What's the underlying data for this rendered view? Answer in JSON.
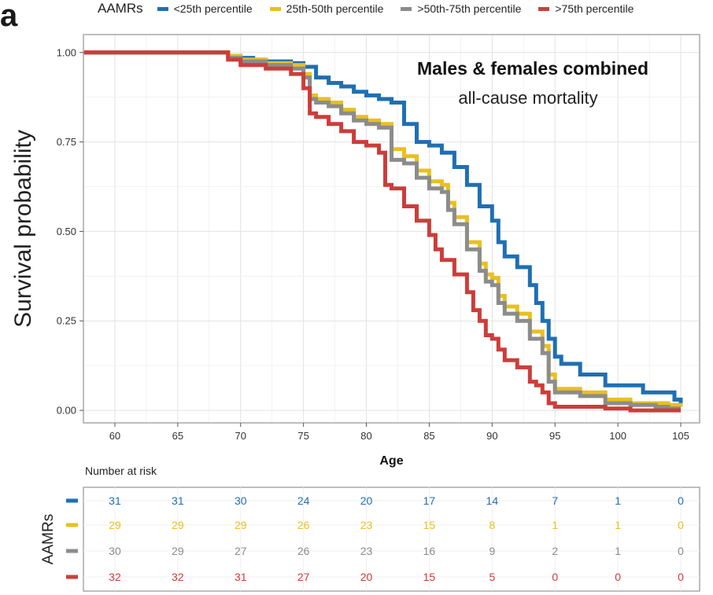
{
  "panel_label": "a",
  "legend": {
    "title": "AAMRs",
    "items": [
      {
        "label": "<25th percentile",
        "color": "#1f6fb2"
      },
      {
        "label": "25th-50th percentile",
        "color": "#e8c020"
      },
      {
        "label": ">50th-75th percentile",
        "color": "#8c8c8c"
      },
      {
        "label": ">75th percentile",
        "color": "#cc3d3a"
      }
    ]
  },
  "risk_table": {
    "title": "Number at risk",
    "ylabel": "AAMRs"
  },
  "chart_data": [
    {
      "type": "line",
      "title": "Males & females combined",
      "subtitle": "all-cause mortality",
      "xlabel": "Age",
      "ylabel": "Survival probability",
      "xlim": [
        57.5,
        106.5
      ],
      "ylim": [
        -0.035,
        1.05
      ],
      "xticks": [
        60,
        65,
        70,
        75,
        80,
        85,
        90,
        95,
        100,
        105
      ],
      "yticks": [
        0.0,
        0.25,
        0.5,
        0.75,
        1.0
      ],
      "ytick_labels": [
        "0.00",
        "0.25",
        "0.50",
        "0.75",
        "1.00"
      ],
      "grid": true,
      "series": [
        {
          "name": "<25th percentile",
          "color": "#1f6fb2",
          "points": [
            [
              57.5,
              1.0
            ],
            [
              68,
              1.0
            ],
            [
              69,
              0.99
            ],
            [
              70,
              0.985
            ],
            [
              71,
              0.98
            ],
            [
              72,
              0.975
            ],
            [
              74,
              0.97
            ],
            [
              75,
              0.96
            ],
            [
              76,
              0.93
            ],
            [
              77,
              0.915
            ],
            [
              78,
              0.905
            ],
            [
              79,
              0.89
            ],
            [
              80,
              0.88
            ],
            [
              81,
              0.87
            ],
            [
              82,
              0.86
            ],
            [
              83,
              0.8
            ],
            [
              84,
              0.75
            ],
            [
              85,
              0.74
            ],
            [
              86,
              0.72
            ],
            [
              87,
              0.68
            ],
            [
              88,
              0.63
            ],
            [
              89,
              0.57
            ],
            [
              90,
              0.53
            ],
            [
              90.5,
              0.47
            ],
            [
              91,
              0.43
            ],
            [
              92,
              0.4
            ],
            [
              93,
              0.35
            ],
            [
              93.5,
              0.3
            ],
            [
              94,
              0.25
            ],
            [
              94.5,
              0.2
            ],
            [
              95,
              0.15
            ],
            [
              95.5,
              0.13
            ],
            [
              97,
              0.1
            ],
            [
              98,
              0.1
            ],
            [
              99,
              0.07
            ],
            [
              101,
              0.07
            ],
            [
              102,
              0.05
            ],
            [
              104,
              0.05
            ],
            [
              104.5,
              0.03
            ],
            [
              105,
              0.02
            ]
          ]
        },
        {
          "name": "25th-50th percentile",
          "color": "#e8c020",
          "points": [
            [
              57.5,
              1.0
            ],
            [
              68,
              1.0
            ],
            [
              69,
              0.99
            ],
            [
              70,
              0.98
            ],
            [
              72,
              0.97
            ],
            [
              74,
              0.965
            ],
            [
              75,
              0.94
            ],
            [
              75.5,
              0.88
            ],
            [
              76,
              0.87
            ],
            [
              77,
              0.86
            ],
            [
              78,
              0.84
            ],
            [
              79,
              0.82
            ],
            [
              80,
              0.81
            ],
            [
              81,
              0.8
            ],
            [
              82,
              0.73
            ],
            [
              83,
              0.71
            ],
            [
              84,
              0.67
            ],
            [
              85,
              0.64
            ],
            [
              86,
              0.63
            ],
            [
              86.5,
              0.58
            ],
            [
              87,
              0.54
            ],
            [
              88,
              0.47
            ],
            [
              89,
              0.41
            ],
            [
              89.5,
              0.38
            ],
            [
              90,
              0.37
            ],
            [
              90.5,
              0.32
            ],
            [
              91,
              0.29
            ],
            [
              92,
              0.27
            ],
            [
              93,
              0.22
            ],
            [
              94,
              0.18
            ],
            [
              94.5,
              0.1
            ],
            [
              95,
              0.06
            ],
            [
              97,
              0.05
            ],
            [
              99,
              0.03
            ],
            [
              101,
              0.02
            ],
            [
              103,
              0.02
            ],
            [
              104,
              0.015
            ],
            [
              105,
              0.01
            ]
          ]
        },
        {
          "name": ">50th-75th percentile",
          "color": "#8c8c8c",
          "points": [
            [
              57.5,
              1.0
            ],
            [
              68,
              1.0
            ],
            [
              69,
              0.985
            ],
            [
              70,
              0.975
            ],
            [
              72,
              0.965
            ],
            [
              74,
              0.955
            ],
            [
              75,
              0.93
            ],
            [
              75.5,
              0.87
            ],
            [
              76,
              0.86
            ],
            [
              77,
              0.85
            ],
            [
              78,
              0.83
            ],
            [
              79,
              0.81
            ],
            [
              80,
              0.8
            ],
            [
              81,
              0.79
            ],
            [
              82,
              0.7
            ],
            [
              83,
              0.69
            ],
            [
              84,
              0.65
            ],
            [
              85,
              0.62
            ],
            [
              86,
              0.61
            ],
            [
              86.5,
              0.56
            ],
            [
              87,
              0.52
            ],
            [
              88,
              0.45
            ],
            [
              89,
              0.39
            ],
            [
              89.5,
              0.36
            ],
            [
              90,
              0.35
            ],
            [
              90.5,
              0.3
            ],
            [
              91,
              0.27
            ],
            [
              92,
              0.25
            ],
            [
              93,
              0.2
            ],
            [
              94,
              0.16
            ],
            [
              94.5,
              0.08
            ],
            [
              95,
              0.05
            ],
            [
              97,
              0.04
            ],
            [
              99,
              0.02
            ],
            [
              101,
              0.015
            ],
            [
              103,
              0.01
            ],
            [
              104,
              0.005
            ],
            [
              105,
              0.005
            ]
          ]
        },
        {
          "name": ">75th percentile",
          "color": "#cc3d3a",
          "points": [
            [
              57.5,
              1.0
            ],
            [
              68,
              1.0
            ],
            [
              69,
              0.98
            ],
            [
              70,
              0.965
            ],
            [
              72,
              0.955
            ],
            [
              74,
              0.94
            ],
            [
              75,
              0.9
            ],
            [
              75.5,
              0.83
            ],
            [
              76,
              0.82
            ],
            [
              77,
              0.8
            ],
            [
              78,
              0.78
            ],
            [
              79,
              0.75
            ],
            [
              80,
              0.74
            ],
            [
              81,
              0.72
            ],
            [
              81.5,
              0.63
            ],
            [
              82,
              0.62
            ],
            [
              83,
              0.57
            ],
            [
              84,
              0.53
            ],
            [
              85,
              0.49
            ],
            [
              85.5,
              0.45
            ],
            [
              86,
              0.42
            ],
            [
              87,
              0.38
            ],
            [
              88,
              0.33
            ],
            [
              88.5,
              0.28
            ],
            [
              89,
              0.25
            ],
            [
              89.5,
              0.21
            ],
            [
              90,
              0.2
            ],
            [
              90.5,
              0.17
            ],
            [
              91,
              0.14
            ],
            [
              92,
              0.12
            ],
            [
              93,
              0.08
            ],
            [
              93.5,
              0.07
            ],
            [
              94,
              0.05
            ],
            [
              94.5,
              0.02
            ],
            [
              95,
              0.01
            ],
            [
              97,
              0.01
            ],
            [
              99,
              0.005
            ],
            [
              101,
              0.0
            ],
            [
              103,
              0.0
            ],
            [
              105,
              0.0
            ]
          ]
        }
      ]
    },
    {
      "type": "table",
      "title": "Number at risk",
      "ylabel": "AAMRs",
      "columns": [
        60,
        65,
        70,
        75,
        80,
        85,
        90,
        95,
        100,
        105
      ],
      "rows": [
        {
          "name": "<25th percentile",
          "color": "#1f6fb2",
          "values": [
            31,
            31,
            30,
            24,
            20,
            17,
            14,
            7,
            1,
            0
          ]
        },
        {
          "name": "25th-50th percentile",
          "color": "#e8c020",
          "values": [
            29,
            29,
            29,
            26,
            23,
            15,
            8,
            1,
            1,
            0
          ]
        },
        {
          "name": ">50th-75th percentile",
          "color": "#8c8c8c",
          "values": [
            30,
            29,
            27,
            26,
            23,
            16,
            9,
            2,
            1,
            0
          ]
        },
        {
          "name": ">75th percentile",
          "color": "#cc3d3a",
          "values": [
            32,
            32,
            31,
            27,
            20,
            15,
            5,
            0,
            0,
            0
          ]
        }
      ]
    }
  ]
}
